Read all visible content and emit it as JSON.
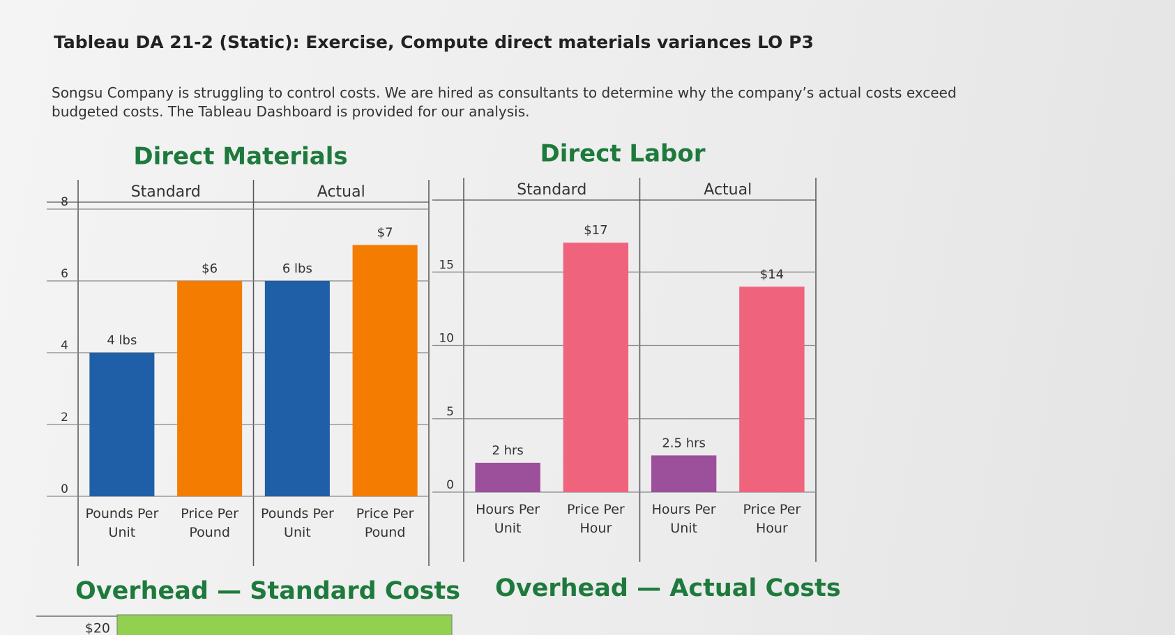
{
  "page": {
    "title": "Tableau DA 21-2 (Static): Exercise, Compute direct materials variances LO P3",
    "description": "Songsu Company is struggling to control costs. We are hired as consultants to determine why the company’s actual costs exceed budgeted costs. The Tableau Dashboard is provided for our analysis.",
    "overhead_actual_title": "Overhead — Actual Costs"
  },
  "chart_data": [
    {
      "type": "bar",
      "title": "Direct Materials",
      "groups": [
        "Standard",
        "Actual"
      ],
      "categories": [
        "Pounds Per Unit",
        "Price Per Pound",
        "Pounds Per Unit",
        "Price Per Pound"
      ],
      "values": [
        4,
        6,
        6,
        7
      ],
      "value_labels": [
        "4 lbs",
        "$6",
        "6 lbs",
        "$7"
      ],
      "colors": [
        "#1f5fa8",
        "#f47c00",
        "#1f5fa8",
        "#f47c00"
      ],
      "ylim": [
        0,
        8
      ],
      "yticks": [
        0,
        2,
        4,
        6,
        8
      ],
      "grid": true
    },
    {
      "type": "bar",
      "title": "Direct Labor",
      "groups": [
        "Standard",
        "Actual"
      ],
      "categories": [
        "Hours Per Unit",
        "Price Per Hour",
        "Hours Per Unit",
        "Price Per Hour"
      ],
      "values": [
        2,
        17,
        2.5,
        14
      ],
      "value_labels": [
        "2 hrs",
        "$17",
        "2.5 hrs",
        "$14"
      ],
      "colors": [
        "#9c4f9a",
        "#f0637c",
        "#9c4f9a",
        "#f0637c"
      ],
      "ylim": [
        0,
        20
      ],
      "yticks": [
        0,
        5,
        10,
        15
      ],
      "grid": true
    },
    {
      "type": "hbar",
      "title": "Overhead — Standard Costs",
      "values": [
        20
      ],
      "value_labels": [
        "$20"
      ],
      "color": "#92d050"
    }
  ]
}
